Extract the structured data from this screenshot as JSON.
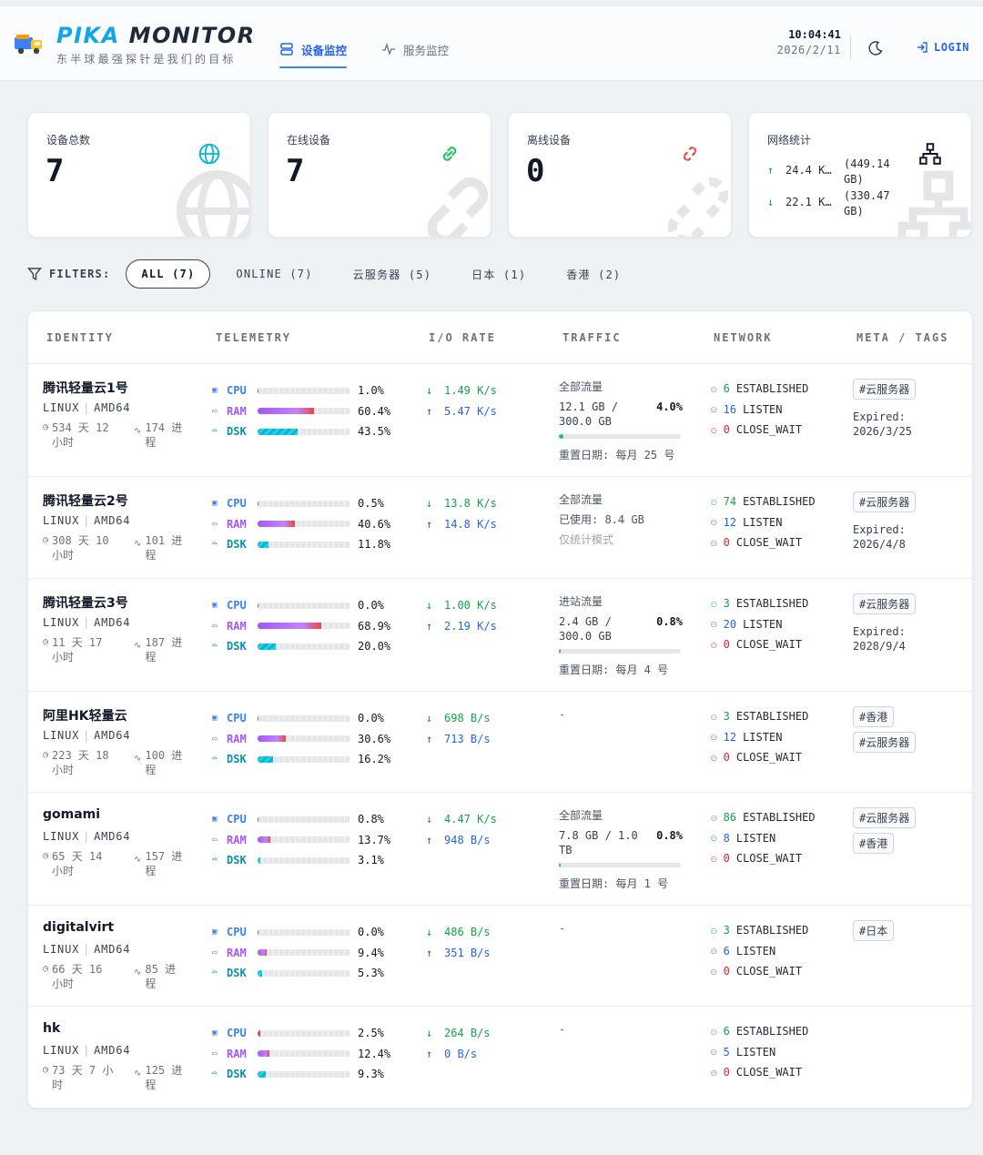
{
  "header": {
    "brand_part1": "PIKA",
    "brand_part2": "MONITOR",
    "slogan": "东半球最强探针是我们的目标",
    "tabs": [
      {
        "label": "设备监控",
        "active": true,
        "icon": "server-icon"
      },
      {
        "label": "服务监控",
        "active": false,
        "icon": "activity-icon"
      }
    ],
    "time": "10:04:41",
    "date": "2026/2/11",
    "login_label": "LOGIN"
  },
  "stats": {
    "total": {
      "label": "设备总数",
      "value": "7",
      "icon": "globe-icon"
    },
    "online": {
      "label": "在线设备",
      "value": "7",
      "icon": "link-icon"
    },
    "offline": {
      "label": "离线设备",
      "value": "0",
      "icon": "broken-link-icon"
    },
    "network": {
      "label": "网络统计",
      "up": "24.4 K…",
      "up_total": "(449.14 GB)",
      "down": "22.1 K…",
      "down_total": "(330.47 GB)",
      "icon": "network-icon"
    }
  },
  "filters": {
    "label": "FILTERS:",
    "options": [
      {
        "label": "ALL (7)",
        "active": true
      },
      {
        "label": "ONLINE (7)",
        "active": false
      },
      {
        "label": "云服务器 (5)",
        "active": false
      },
      {
        "label": "日本 (1)",
        "active": false
      },
      {
        "label": "香港 (2)",
        "active": false
      }
    ]
  },
  "table": {
    "headers": [
      "IDENTITY",
      "TELEMETRY",
      "I/O RATE",
      "TRAFFIC",
      "NETWORK",
      "META / TAGS"
    ],
    "rows": [
      {
        "name": "腾讯轻量云1号",
        "os": "LINUX",
        "arch": "AMD64",
        "uptime": "534 天 12 小时",
        "procs": "174 进程",
        "cpu": "1.0%",
        "cpu_v": 1.0,
        "ram": "60.4%",
        "ram_v": 60.4,
        "dsk": "43.5%",
        "dsk_v": 43.5,
        "down": "1.49 K/s",
        "up": "5.47 K/s",
        "traffic": {
          "title": "全部流量",
          "value": "12.1 GB / 300.0 GB",
          "pct": "4.0%",
          "pct_v": 4.0,
          "reset": "重置日期: 每月 25 号"
        },
        "est": "6",
        "listen": "16",
        "cw": "0",
        "tags": [
          "#云服务器"
        ],
        "expire_label": "Expired:",
        "expire": "2026/3/25"
      },
      {
        "name": "腾讯轻量云2号",
        "os": "LINUX",
        "arch": "AMD64",
        "uptime": "308 天 10 小时",
        "procs": "101 进程",
        "cpu": "0.5%",
        "cpu_v": 0.5,
        "ram": "40.6%",
        "ram_v": 40.6,
        "dsk": "11.8%",
        "dsk_v": 11.8,
        "down": "13.8 K/s",
        "up": "14.8 K/s",
        "traffic": {
          "title": "全部流量",
          "used": "已使用: 8.4 GB",
          "mode": "仅统计模式"
        },
        "est": "74",
        "listen": "12",
        "cw": "0",
        "tags": [
          "#云服务器"
        ],
        "expire_label": "Expired:",
        "expire": "2026/4/8"
      },
      {
        "name": "腾讯轻量云3号",
        "os": "LINUX",
        "arch": "AMD64",
        "uptime": "11 天 17 小时",
        "procs": "187 进程",
        "cpu": "0.0%",
        "cpu_v": 0.0,
        "ram": "68.9%",
        "ram_v": 68.9,
        "dsk": "20.0%",
        "dsk_v": 20.0,
        "down": "1.00 K/s",
        "up": "2.19 K/s",
        "traffic": {
          "title": "进站流量",
          "value": "2.4 GB / 300.0 GB",
          "pct": "0.8%",
          "pct_v": 0.8,
          "reset": "重置日期: 每月 4 号"
        },
        "est": "3",
        "listen": "20",
        "cw": "0",
        "tags": [
          "#云服务器"
        ],
        "expire_label": "Expired:",
        "expire": "2028/9/4"
      },
      {
        "name": "阿里HK轻量云",
        "os": "LINUX",
        "arch": "AMD64",
        "uptime": "223 天 18 小时",
        "procs": "100 进程",
        "cpu": "0.0%",
        "cpu_v": 0.0,
        "ram": "30.6%",
        "ram_v": 30.6,
        "dsk": "16.2%",
        "dsk_v": 16.2,
        "down": "698 B/s",
        "up": "713 B/s",
        "traffic": {
          "none": "-"
        },
        "est": "3",
        "listen": "12",
        "cw": "0",
        "tags": [
          "#香港",
          "#云服务器"
        ]
      },
      {
        "name": "gomami",
        "os": "LINUX",
        "arch": "AMD64",
        "uptime": "65 天 14 小时",
        "procs": "157 进程",
        "cpu": "0.8%",
        "cpu_v": 0.8,
        "ram": "13.7%",
        "ram_v": 13.7,
        "dsk": "3.1%",
        "dsk_v": 3.1,
        "down": "4.47 K/s",
        "up": "948 B/s",
        "traffic": {
          "title": "全部流量",
          "value": "7.8 GB / 1.0 TB",
          "pct": "0.8%",
          "pct_v": 0.8,
          "reset": "重置日期: 每月 1 号"
        },
        "est": "86",
        "listen": "8",
        "cw": "0",
        "tags": [
          "#云服务器",
          "#香港"
        ]
      },
      {
        "name": "digitalvirt",
        "os": "LINUX",
        "arch": "AMD64",
        "uptime": "66 天 16 小时",
        "procs": "85 进程",
        "cpu": "0.0%",
        "cpu_v": 0.0,
        "ram": "9.4%",
        "ram_v": 9.4,
        "dsk": "5.3%",
        "dsk_v": 5.3,
        "down": "486 B/s",
        "up": "351 B/s",
        "traffic": {
          "none": "-"
        },
        "est": "3",
        "listen": "6",
        "cw": "0",
        "tags": [
          "#日本"
        ]
      },
      {
        "name": "hk",
        "os": "LINUX",
        "arch": "AMD64",
        "uptime": "73 天 7 小时",
        "procs": "125 进程",
        "cpu": "2.5%",
        "cpu_v": 2.5,
        "ram": "12.4%",
        "ram_v": 12.4,
        "dsk": "9.3%",
        "dsk_v": 9.3,
        "down": "264 B/s",
        "up": "0 B/s",
        "traffic": {
          "none": "-"
        },
        "est": "6",
        "listen": "5",
        "cw": "0",
        "tags": []
      }
    ],
    "labels": {
      "cpu": "CPU",
      "ram": "RAM",
      "dsk": "DSK",
      "est": "ESTABLISHED",
      "listen": "LISTEN",
      "cw": "CLOSE_WAIT"
    }
  },
  "colors": {
    "accent": "#2563eb",
    "brand": "#0ea5e9",
    "online": "#16a34a",
    "danger": "#dc2626"
  }
}
